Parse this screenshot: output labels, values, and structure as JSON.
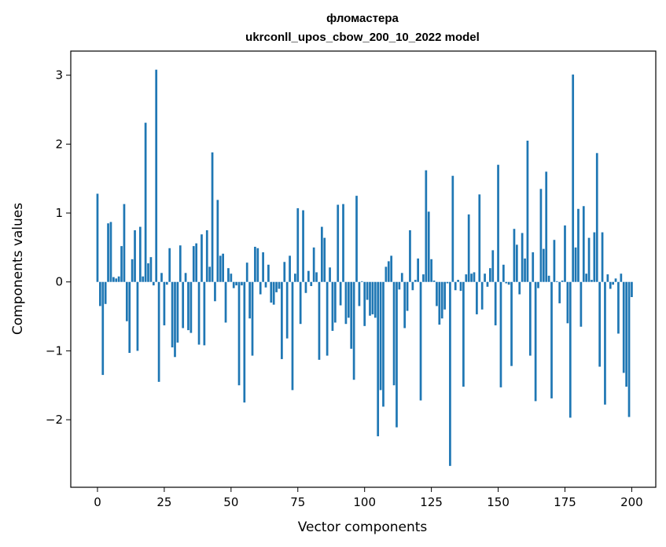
{
  "chart_data": {
    "type": "bar",
    "title": "фломастера",
    "subtitle": "ukrconll_upos_cbow_200_10_2022 model",
    "xlabel": "Vector components",
    "ylabel": "Components values",
    "xlim": [
      -10,
      209
    ],
    "ylim": [
      -2.98,
      3.35
    ],
    "xticks": [
      0,
      25,
      50,
      75,
      100,
      125,
      150,
      175,
      200
    ],
    "yticks": [
      -2,
      -1,
      0,
      1,
      2,
      3
    ],
    "bar_color": "#1f77b4",
    "grid": false,
    "values": [
      1.28,
      -0.35,
      -1.35,
      -0.32,
      0.85,
      0.87,
      0.07,
      0.05,
      0.08,
      0.52,
      1.13,
      -0.57,
      -1.03,
      0.33,
      0.75,
      -1.0,
      0.8,
      0.08,
      2.31,
      0.27,
      0.36,
      -0.05,
      3.08,
      -1.45,
      0.13,
      -0.63,
      -0.04,
      0.49,
      -0.95,
      -1.09,
      -0.88,
      0.53,
      -0.67,
      0.13,
      -0.7,
      -0.74,
      0.52,
      0.56,
      -0.91,
      0.69,
      -0.92,
      0.75,
      0.22,
      1.88,
      -0.28,
      1.19,
      0.38,
      0.41,
      -0.59,
      0.2,
      0.12,
      -0.09,
      -0.05,
      -1.5,
      -0.05,
      -1.75,
      0.28,
      -0.53,
      -1.07,
      0.51,
      0.49,
      -0.18,
      0.43,
      -0.08,
      0.25,
      -0.3,
      -0.33,
      -0.15,
      -0.1,
      -1.12,
      0.29,
      -0.82,
      0.38,
      -1.57,
      0.12,
      1.07,
      -0.61,
      1.04,
      -0.16,
      0.16,
      -0.06,
      0.5,
      0.14,
      -1.13,
      0.8,
      0.64,
      -1.07,
      0.21,
      -0.71,
      -0.59,
      1.12,
      -0.34,
      1.13,
      -0.61,
      -0.52,
      -0.97,
      -1.42,
      1.25,
      -0.35,
      0.01,
      -0.64,
      -0.26,
      -0.49,
      -0.47,
      -0.52,
      -2.24,
      -1.57,
      -1.81,
      0.22,
      0.3,
      0.38,
      -1.5,
      -2.11,
      -0.11,
      0.13,
      -0.67,
      -0.42,
      0.75,
      -0.12,
      0.03,
      0.34,
      -1.72,
      0.11,
      1.62,
      1.02,
      0.33,
      0.02,
      -0.35,
      -0.62,
      -0.53,
      -0.4,
      -0.02,
      -2.67,
      1.54,
      -0.12,
      0.03,
      -0.13,
      -1.52,
      0.11,
      0.98,
      0.12,
      0.14,
      -0.47,
      1.27,
      -0.4,
      0.12,
      -0.07,
      0.2,
      0.46,
      -0.63,
      1.7,
      -1.53,
      0.25,
      -0.02,
      -0.04,
      -1.22,
      0.77,
      0.54,
      -0.18,
      0.71,
      0.34,
      2.05,
      -1.07,
      0.43,
      -1.73,
      -0.09,
      1.35,
      0.48,
      1.6,
      0.09,
      -1.69,
      0.61,
      0.01,
      -0.31,
      0.02,
      0.82,
      -0.6,
      -1.97,
      3.01,
      0.5,
      1.06,
      -0.65,
      1.1,
      0.12,
      0.64,
      0.03,
      0.72,
      1.87,
      -1.23,
      0.72,
      -1.78,
      0.11,
      -0.1,
      -0.04,
      0.05,
      -0.75,
      0.12,
      -1.32,
      -1.52,
      -1.96,
      -0.22
    ]
  }
}
